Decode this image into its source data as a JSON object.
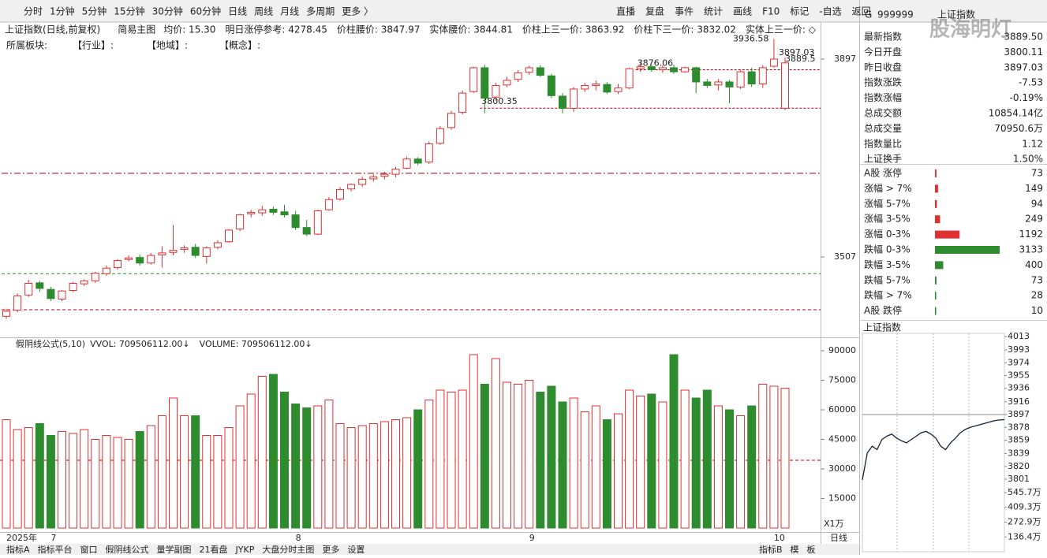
{
  "toolbar": {
    "periods": [
      "分时",
      "1分钟",
      "5分钟",
      "15分钟",
      "30分钟",
      "60分钟",
      "日线",
      "周线",
      "月线",
      "多周期",
      "更多 〉"
    ],
    "active": 6,
    "buttons": [
      "直播",
      "复盘",
      "事件",
      "统计",
      "画线",
      "F10",
      "标记",
      "-自选",
      "返回"
    ]
  },
  "info": {
    "title": "上证指数(日线,前复权)",
    "mode": "简易主图",
    "metrics": [
      "均价: 15.30",
      "明日涨停参考: 4278.45",
      "价柱腰价: 3847.97",
      "实体腰价: 3844.81",
      "价柱上三一价: 3863.92",
      "价柱下三一价: 3832.02",
      "实体上三一价: ◇"
    ],
    "sectors": [
      "所属板块:",
      "【行业】:",
      "【地域】:",
      "【概念】:"
    ]
  },
  "chart_data": {
    "type": "candlestick",
    "categories": [
      "2025年",
      null,
      null,
      null,
      "7",
      null,
      null,
      null,
      null,
      null,
      null,
      null,
      null,
      null,
      null,
      null,
      null,
      null,
      null,
      null,
      null,
      null,
      null,
      null,
      null,
      null,
      "8",
      null,
      null,
      null,
      null,
      null,
      null,
      null,
      null,
      null,
      null,
      null,
      null,
      null,
      null,
      null,
      null,
      null,
      null,
      null,
      null,
      "9",
      null,
      null,
      null,
      null,
      null,
      null,
      null,
      null,
      null,
      null,
      null,
      null,
      null,
      null,
      null,
      null,
      null,
      null,
      null,
      null,
      null,
      "10",
      null
    ],
    "open": [
      3390,
      3402,
      3432,
      3456,
      3443,
      3424,
      3441,
      3454,
      3460,
      3474,
      3486,
      3502,
      3506,
      3495,
      3511,
      3516,
      3522,
      3526,
      3508,
      3526,
      3537,
      3562,
      3592,
      3594,
      3601,
      3596,
      3590,
      3565,
      3552,
      3600,
      3621,
      3641,
      3650,
      3661,
      3666,
      3670,
      3682,
      3700,
      3694,
      3731,
      3762,
      3792,
      3833,
      3880,
      3822,
      3846,
      3857,
      3871,
      3880,
      3864,
      3824,
      3800,
      3838,
      3845,
      3847,
      3833,
      3840,
      3878,
      3882,
      3876,
      3880,
      3872,
      3880,
      3852,
      3846,
      3852,
      3842,
      3872,
      3848,
      3883,
      3800.11
    ],
    "high": [
      3405,
      3435,
      3462,
      3460,
      3448,
      3442,
      3458,
      3463,
      3478,
      3490,
      3503,
      3510,
      3512,
      3515,
      3528,
      3570,
      3530,
      3533,
      3528,
      3540,
      3562,
      3592,
      3600,
      3608,
      3606,
      3610,
      3598,
      3580,
      3600,
      3625,
      3645,
      3652,
      3665,
      3670,
      3675,
      3685,
      3705,
      3704,
      3735,
      3765,
      3795,
      3835,
      3882,
      3886,
      3850,
      3862,
      3875,
      3884,
      3885,
      3868,
      3830,
      3842,
      3850,
      3855,
      3852,
      3848,
      3880,
      3890,
      3886,
      3885,
      3886,
      3882,
      3882,
      3858,
      3858,
      3856,
      3875,
      3880,
      3885,
      3936.58,
      3900
    ],
    "low": [
      3385,
      3398,
      3428,
      3438,
      3420,
      3420,
      3438,
      3450,
      3456,
      3470,
      3482,
      3498,
      3490,
      3492,
      3486,
      3510,
      3515,
      3505,
      3494,
      3522,
      3535,
      3558,
      3585,
      3588,
      3590,
      3585,
      3560,
      3548,
      3550,
      3598,
      3618,
      3636,
      3645,
      3655,
      3660,
      3664,
      3680,
      3688,
      3690,
      3728,
      3758,
      3788,
      3830,
      3790,
      3815,
      3842,
      3852,
      3866,
      3862,
      3820,
      3790,
      3793,
      3832,
      3835,
      3828,
      3828,
      3838,
      3872,
      3872,
      3870,
      3868,
      3870,
      3830,
      3840,
      3835,
      3810,
      3838,
      3842,
      3840,
      3880,
      3796
    ],
    "close": [
      3400,
      3430,
      3455,
      3445,
      3425,
      3440,
      3455,
      3460,
      3475,
      3485,
      3500,
      3505,
      3495,
      3510,
      3515,
      3520,
      3525,
      3510,
      3525,
      3535,
      3560,
      3590,
      3595,
      3600,
      3595,
      3590,
      3565,
      3552,
      3598,
      3620,
      3640,
      3650,
      3660,
      3665,
      3670,
      3680,
      3700,
      3692,
      3730,
      3760,
      3790,
      3830,
      3880,
      3820,
      3845,
      3855,
      3870,
      3880,
      3865,
      3825,
      3800,
      3838,
      3845,
      3848,
      3832,
      3840,
      3878,
      3882,
      3876,
      3880,
      3872,
      3880,
      3852,
      3845,
      3852,
      3842,
      3872,
      3848,
      3880,
      3897.03,
      3889.5
    ],
    "volume": [
      55000,
      50000,
      51000,
      53000,
      47000,
      49000,
      48000,
      50000,
      45000,
      47000,
      46000,
      45000,
      49000,
      52000,
      57000,
      66000,
      57000,
      57000,
      47000,
      47000,
      51000,
      62000,
      68000,
      77000,
      78000,
      69000,
      63000,
      61000,
      62000,
      65000,
      53000,
      51000,
      52000,
      53000,
      54000,
      55000,
      56000,
      60000,
      65000,
      70000,
      69000,
      70000,
      88000,
      73000,
      86000,
      74000,
      73000,
      75000,
      69000,
      72000,
      64000,
      66000,
      59000,
      62000,
      55000,
      58000,
      70000,
      67000,
      68000,
      64000,
      88000,
      70000,
      66000,
      70000,
      62000,
      60000,
      57000,
      62000,
      73000,
      72000,
      70950.6
    ],
    "up_color": "#e03030",
    "down_color": "#2e8b2e",
    "ylim": [
      3361,
      3970
    ],
    "yticks": [
      3507,
      3897
    ],
    "ref_lines": [
      {
        "value": 3876.06,
        "from": 57,
        "color": "#c00000",
        "labeled": true
      },
      {
        "value": 3800.35,
        "from": 43,
        "color": "#c00000",
        "labeled": true
      },
      {
        "value": 3672,
        "from": 0,
        "color": "#a00000",
        "labeled": false
      },
      {
        "value": 3474,
        "from": 0,
        "color": "#2e8b2e",
        "labeled": false
      },
      {
        "value": 3403,
        "from": 0,
        "color": "#c00000",
        "labeled": false
      }
    ],
    "volume_title": "假阴线公式(5,10)",
    "vvol_label": "VVOL: 709506112.00↓",
    "volume_label": "VOLUME: 709506112.00↓",
    "vlim": [
      0,
      96000
    ],
    "vticks": [
      15000,
      30000,
      45000,
      60000,
      75000,
      90000
    ],
    "vref": 34400,
    "vunit": "X1万"
  },
  "footer": {
    "period": "日线",
    "tabs": [
      "指标A",
      "指标平台",
      "窗口",
      "假阴线公式",
      "量学副图",
      "21看盘",
      "JYKP",
      "大盘分时主图",
      "更多",
      "设置"
    ],
    "right_tabs": [
      "指标B",
      "模",
      "板"
    ]
  },
  "panel": {
    "code_prefix": "G",
    "code": "999999",
    "name": "上证指数",
    "watermark": "股海明灯",
    "stats": [
      {
        "label": "最新指数",
        "value": "3889.50",
        "color": "#2e8b2e"
      },
      {
        "label": "今日开盘",
        "value": "3800.11",
        "color": "#2e8b2e"
      },
      {
        "label": "昨日收盘",
        "value": "3897.03",
        "color": "#222"
      },
      {
        "label": "指数涨跌",
        "value": "-7.53",
        "color": "#2e8b2e"
      },
      {
        "label": "指数涨幅",
        "value": "-0.19%",
        "color": "#2e8b2e"
      },
      {
        "label": "总成交额",
        "value": "10854.14亿",
        "color": "#222"
      },
      {
        "label": "总成交量",
        "value": "70950.6万",
        "color": "#222"
      },
      {
        "label": "指数量比",
        "value": "1.12",
        "color": "#e03030"
      },
      {
        "label": "上证换手",
        "value": "1.50%",
        "color": "#222"
      }
    ],
    "breadth": [
      {
        "label": "A股 涨停",
        "count": 73,
        "dir": "up"
      },
      {
        "label": "涨幅 > 7%",
        "count": 149,
        "dir": "up"
      },
      {
        "label": "涨幅 5-7%",
        "count": 94,
        "dir": "up"
      },
      {
        "label": "涨幅 3-5%",
        "count": 249,
        "dir": "up"
      },
      {
        "label": "涨幅 0-3%",
        "count": 1192,
        "dir": "up"
      },
      {
        "label": "跌幅 0-3%",
        "count": 3133,
        "dir": "down"
      },
      {
        "label": "跌幅 3-5%",
        "count": 400,
        "dir": "down"
      },
      {
        "label": "跌幅 5-7%",
        "count": 73,
        "dir": "down"
      },
      {
        "label": "跌幅 > 7%",
        "count": 28,
        "dir": "down"
      },
      {
        "label": "A股 跌停",
        "count": 10,
        "dir": "down"
      }
    ],
    "mini": {
      "title": "上证指数",
      "ylim": [
        3801,
        4013
      ],
      "yticks": [
        4013,
        3993,
        3974,
        3955,
        3936,
        3916,
        3897,
        3878,
        3859,
        3839,
        3820,
        3801
      ],
      "values": [
        3800,
        3840,
        3850,
        3845,
        3860,
        3865,
        3868,
        3862,
        3858,
        3855,
        3860,
        3865,
        3870,
        3872,
        3868,
        3862,
        3850,
        3845,
        3855,
        3862,
        3870,
        3875,
        3878,
        3880,
        3882,
        3884,
        3886,
        3888,
        3889,
        3889.5
      ],
      "vlim": [
        0,
        545.7
      ],
      "vticks": [
        {
          "value": 545.7,
          "label": "545.7万"
        },
        {
          "value": 409.3,
          "label": "409.3万"
        },
        {
          "value": 272.9,
          "label": "272.9万"
        },
        {
          "value": 136.4,
          "label": "136.4万"
        }
      ]
    }
  }
}
